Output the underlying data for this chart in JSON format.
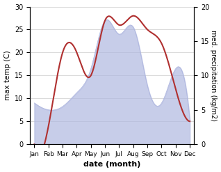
{
  "months": [
    "Jan",
    "Feb",
    "Mar",
    "Apr",
    "May",
    "Jun",
    "Jul",
    "Aug",
    "Sep",
    "Oct",
    "Nov",
    "Dec"
  ],
  "temperature": [
    0,
    4,
    20,
    20,
    15,
    27,
    26,
    28,
    25,
    22,
    12,
    5
  ],
  "precipitation": [
    6,
    5,
    5.5,
    7.5,
    11,
    18,
    16,
    17,
    8.5,
    6,
    11,
    3.5
  ],
  "temp_color": "#b03030",
  "precip_color_fill": "#b0b8e0",
  "left_ylim": [
    0,
    30
  ],
  "right_ylim": [
    0,
    20
  ],
  "left_ylabel": "max temp (C)",
  "right_ylabel": "med. precipitation (kg/m2)",
  "xlabel": "date (month)",
  "left_yticks": [
    0,
    5,
    10,
    15,
    20,
    25,
    30
  ],
  "right_yticks": [
    0,
    5,
    10,
    15,
    20
  ],
  "bg_color": "#ffffff"
}
